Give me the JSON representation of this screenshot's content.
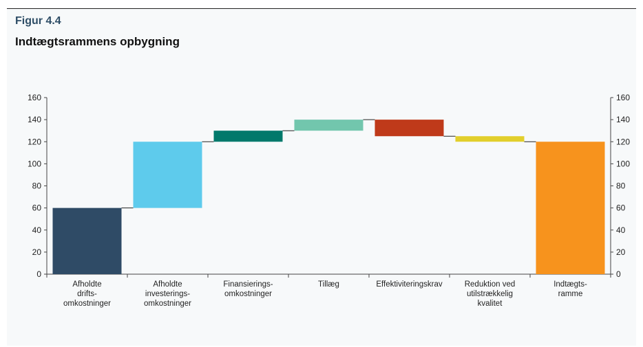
{
  "figure": {
    "label": "Figur 4.4",
    "title": "Indtægtsrammens opbygning"
  },
  "chart_data": {
    "type": "bar",
    "subtype": "waterfall",
    "categories": [
      [
        "Afholdte",
        "drifts-",
        "omkostninger"
      ],
      [
        "Afholdte",
        "investerings-",
        "omkostninger"
      ],
      [
        "Finansierings-",
        "omkostninger"
      ],
      [
        "Tillæg"
      ],
      [
        "Effektiviteringskrav"
      ],
      [
        "Reduktion ved",
        "utilstrækkelig",
        "kvalitet"
      ],
      [
        "Indtægts-",
        "ramme"
      ]
    ],
    "bars": [
      {
        "start": 0,
        "end": 60,
        "color": "#2f4b66"
      },
      {
        "start": 60,
        "end": 120,
        "color": "#5ecbec"
      },
      {
        "start": 120,
        "end": 130,
        "color": "#00796b"
      },
      {
        "start": 130,
        "end": 140,
        "color": "#72c6ad"
      },
      {
        "start": 140,
        "end": 125,
        "color": "#bf3a1a"
      },
      {
        "start": 125,
        "end": 120,
        "color": "#e2cf2c"
      },
      {
        "start": 0,
        "end": 120,
        "color": "#f7931d"
      }
    ],
    "ylim": [
      0,
      160
    ],
    "yticks": [
      "0",
      "20",
      "40",
      "60",
      "80",
      "100",
      "120",
      "140",
      "160"
    ],
    "axis_left": true,
    "axis_right": true,
    "connector_lines": true,
    "grid": false
  }
}
